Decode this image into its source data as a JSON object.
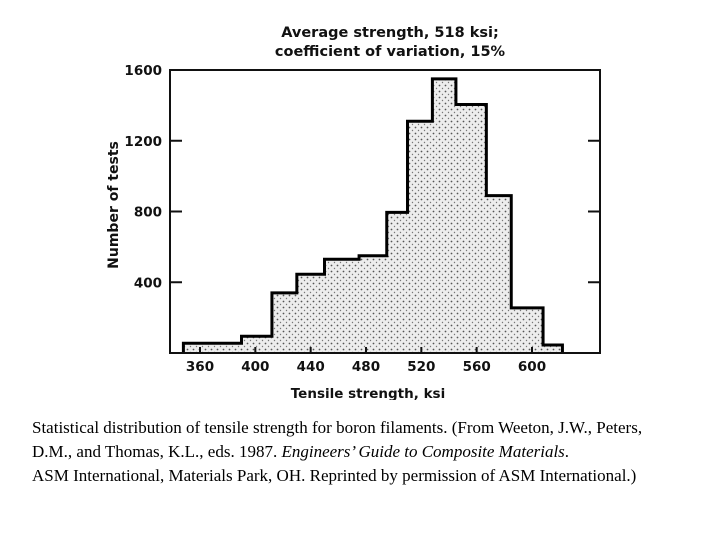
{
  "chart_data": {
    "type": "bar",
    "title": "Average strength, 518 ksi;",
    "subtitle": "coefficient of variation, 15%",
    "xlabel": "Tensile strength, ksi",
    "ylabel": "Number of tests",
    "xlim": [
      340,
      628
    ],
    "ylim": [
      0,
      1600
    ],
    "x_ticks": [
      360,
      400,
      440,
      480,
      520,
      560,
      600
    ],
    "y_ticks": [
      400,
      800,
      1200,
      1600
    ],
    "grid": false,
    "bins": [
      {
        "x0": 348,
        "x1": 390,
        "value": 55
      },
      {
        "x0": 390,
        "x1": 412,
        "value": 95
      },
      {
        "x0": 412,
        "x1": 430,
        "value": 340
      },
      {
        "x0": 430,
        "x1": 450,
        "value": 445
      },
      {
        "x0": 450,
        "x1": 475,
        "value": 530
      },
      {
        "x0": 475,
        "x1": 495,
        "value": 550
      },
      {
        "x0": 495,
        "x1": 510,
        "value": 795
      },
      {
        "x0": 510,
        "x1": 528,
        "value": 1310
      },
      {
        "x0": 528,
        "x1": 545,
        "value": 1550
      },
      {
        "x0": 545,
        "x1": 567,
        "value": 1405
      },
      {
        "x0": 567,
        "x1": 585,
        "value": 890
      },
      {
        "x0": 585,
        "x1": 608,
        "value": 255
      },
      {
        "x0": 608,
        "x1": 622,
        "value": 45
      }
    ]
  },
  "caption": {
    "line1": "Statistical distribution of tensile strength for boron filaments. (From Weeton, J.W., Peters,",
    "line2_prefix": "D.M., and Thomas, K.L., eds. 1987. ",
    "line2_title": "Engineers’ Guide to Composite Materials",
    "line2_suffix": ".",
    "line3": "ASM International, Materials Park, OH. Reprinted by permission of ASM International.)"
  }
}
